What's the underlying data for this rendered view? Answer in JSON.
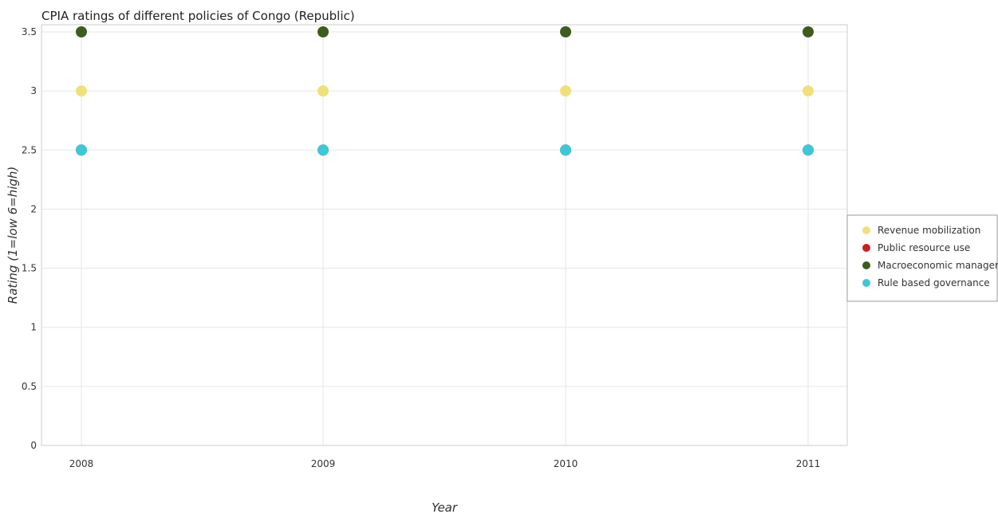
{
  "chart_data": {
    "type": "scatter",
    "title": "CPIA ratings of different policies of Congo (Republic)",
    "xlabel": "Year",
    "ylabel": "Rating (1=low 6=high)",
    "x": [
      "2008",
      "2009",
      "2010",
      "2011"
    ],
    "ylim": [
      0,
      3.5
    ],
    "yticks": [
      "0",
      "0.5",
      "1",
      "1.5",
      "2",
      "2.5",
      "3",
      "3.5"
    ],
    "grid": true,
    "legend_position": "right",
    "series": [
      {
        "name": "Revenue mobilization",
        "color": "#f0e07a",
        "values": [
          3,
          3,
          3,
          3
        ]
      },
      {
        "name": "Public resource use",
        "color": "#cc1f1f",
        "values": [
          2.5,
          2.5,
          2.5,
          2.5
        ]
      },
      {
        "name": "Macroeconomic management",
        "color": "#3d5c1e",
        "values": [
          3.5,
          3.5,
          3.5,
          3.5
        ]
      },
      {
        "name": "Rule based governance",
        "color": "#3cc8d8",
        "values": [
          2.5,
          2.5,
          2.5,
          2.5
        ]
      }
    ]
  }
}
